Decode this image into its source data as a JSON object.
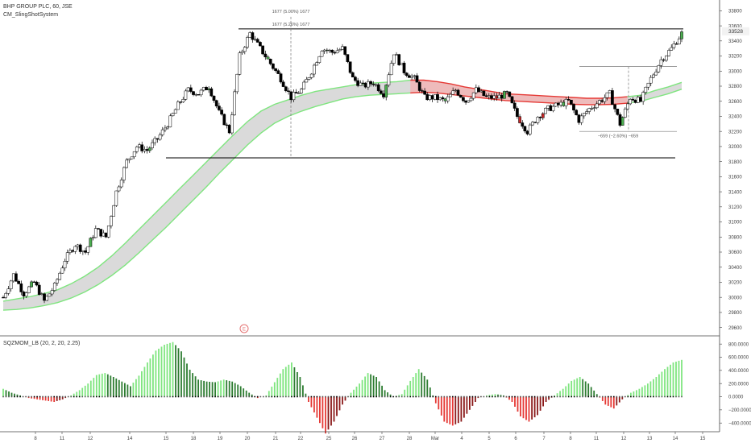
{
  "header": {
    "symbol": "BHP GROUP PLC, 60, JSE",
    "indicator": "CM_SlingShotSystem"
  },
  "lower_header": {
    "indicator": "SQZMOM_LB (20, 2, 20, 2.25)"
  },
  "price_badge": "33528",
  "earnings_marker": "E",
  "chart_data": [
    {
      "type": "candlestick",
      "title": "BHP GROUP PLC, 60, JSE",
      "ylim": [
        29500,
        33900
      ],
      "y_ticks": [
        29600,
        29800,
        30000,
        30200,
        30400,
        30600,
        30800,
        31000,
        31200,
        31400,
        31600,
        31800,
        32000,
        32200,
        32400,
        32600,
        32800,
        33000,
        33200,
        33400,
        33600,
        33800
      ],
      "x_ticks": [
        "8",
        "11",
        "12",
        "14",
        "15",
        "18",
        "19",
        "20",
        "21",
        "22",
        "25",
        "26",
        "27",
        "28",
        "Mar",
        "4",
        "5",
        "6",
        "7",
        "8",
        "11",
        "12",
        "13",
        "14",
        "15"
      ],
      "close_path": [
        30000,
        30300,
        30050,
        30200,
        29950,
        30150,
        30500,
        30700,
        30600,
        30900,
        30800,
        31400,
        31800,
        32000,
        31950,
        32100,
        32300,
        32550,
        32750,
        32700,
        32800,
        32450,
        32200,
        33200,
        33500,
        33300,
        33100,
        32900,
        32650,
        32750,
        33000,
        33300,
        33250,
        33300,
        32900,
        32800,
        32850,
        32700,
        33250,
        33000,
        32900,
        32650,
        32650,
        32600,
        32750,
        32600,
        32750,
        32650,
        32650,
        32700,
        32400,
        32200,
        32400,
        32500,
        32550,
        32600,
        32350,
        32500,
        32600,
        32700,
        32300,
        32650,
        32600,
        32900,
        33150,
        33300,
        33500
      ],
      "overlay_series": [
        {
          "name": "",
          "color": "#7fe57f",
          "values": [
            29950,
            29980,
            30010,
            30050,
            30100,
            30180,
            30280,
            30400,
            30550,
            30720,
            30900,
            31080,
            31260,
            31440,
            31620,
            31800,
            31980,
            32160,
            32330,
            32470,
            32560,
            32620,
            32680,
            32730,
            32760,
            32790,
            32820,
            32840,
            32850,
            32860,
            32880,
            32880,
            32860,
            32830,
            32790,
            32760,
            32730,
            32700,
            32690,
            32680,
            32670,
            32660,
            32650,
            32640,
            32640,
            32645,
            32660,
            32680,
            32740,
            32790,
            32850
          ]
        },
        {
          "name": "",
          "color": "#7fe57f",
          "values": [
            29830,
            29840,
            29860,
            29890,
            29930,
            29990,
            30070,
            30170,
            30290,
            30430,
            30590,
            30760,
            30930,
            31110,
            31290,
            31470,
            31660,
            31840,
            32020,
            32180,
            32310,
            32400,
            32470,
            32530,
            32580,
            32630,
            32660,
            32680,
            32690,
            32700,
            32710,
            32720,
            32710,
            32690,
            32670,
            32650,
            32630,
            32610,
            32600,
            32590,
            32580,
            32570,
            32560,
            32555,
            32555,
            32560,
            32575,
            32600,
            32650,
            32700,
            32760
          ]
        }
      ],
      "annotations": [
        {
          "text": "1677 (5.00%) 1677",
          "color": "#555555"
        },
        {
          "text": "1677 (5.26%) 1677",
          "color": "#555555"
        },
        {
          "text": "−659 (−2.60%) −659",
          "color": "#555555"
        }
      ],
      "horizontal_lines": [
        33560,
        31850
      ]
    },
    {
      "type": "bar",
      "title": "SQZMOM_LB (20, 2, 20, 2.25)",
      "ylim": [
        -520,
        900
      ],
      "y_ticks": [
        800,
        600,
        400,
        200,
        0,
        -200,
        -400
      ],
      "y_tick_labels": [
        "800.0000",
        "600.0000",
        "400.0000",
        "200.0000",
        "0.0000",
        "−200.0000",
        "−400.0000"
      ],
      "colors": {
        "pos_up": "#7fe57f",
        "pos_down": "#2e7d32",
        "neg_down": "#e53935",
        "neg_up": "#8b1a1a"
      },
      "values": [
        120,
        60,
        20,
        -20,
        -40,
        -60,
        -80,
        -40,
        20,
        100,
        200,
        330,
        360,
        300,
        230,
        160,
        320,
        520,
        700,
        790,
        830,
        690,
        410,
        260,
        230,
        220,
        260,
        230,
        160,
        60,
        -20,
        20,
        220,
        420,
        520,
        300,
        -80,
        -320,
        -560,
        -380,
        -120,
        60,
        200,
        360,
        300,
        100,
        0,
        40,
        240,
        420,
        260,
        -100,
        -380,
        -440,
        -380,
        -200,
        -20,
        20,
        40,
        20,
        -80,
        -300,
        -380,
        -280,
        -80,
        20,
        120,
        240,
        300,
        200,
        40,
        -120,
        -180,
        -40,
        60,
        120,
        200,
        300,
        420,
        520,
        560
      ]
    }
  ]
}
